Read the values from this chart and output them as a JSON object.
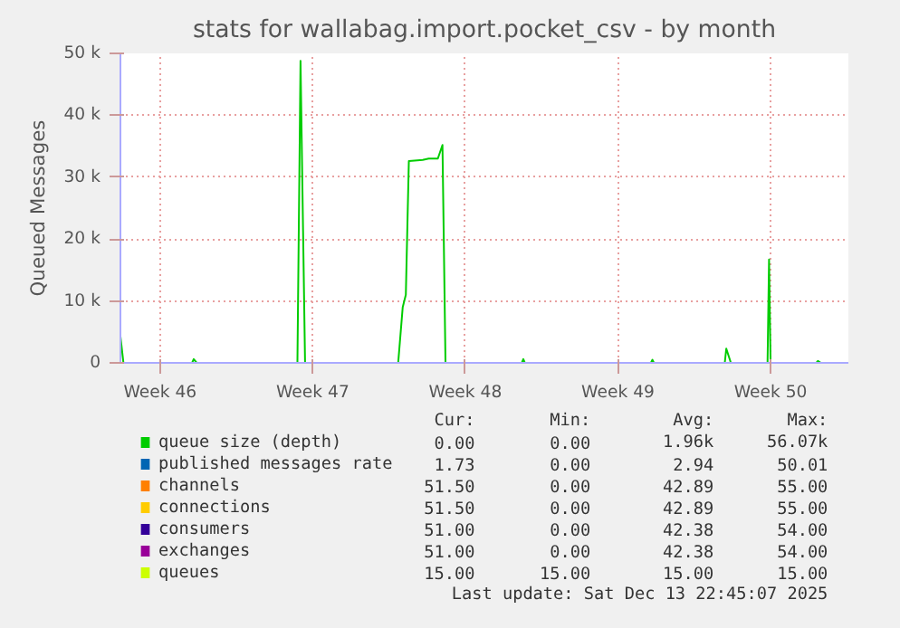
{
  "chart_data": {
    "type": "line",
    "title": "stats for wallabag.import.pocket_csv - by month",
    "ylabel": "Queued Messages",
    "xlim": [
      "2025-11-11T16:20",
      "2025-12-15T01:40"
    ],
    "ylim": [
      0,
      50000
    ],
    "xticks": [
      {
        "value": "2025-11-13T12:00",
        "label": "Week 46"
      },
      {
        "value": "2025-11-20T12:00",
        "label": "Week 47"
      },
      {
        "value": "2025-11-27T12:00",
        "label": "Week 48"
      },
      {
        "value": "2025-12-04T12:00",
        "label": "Week 49"
      },
      {
        "value": "2025-12-11T12:00",
        "label": "Week 50"
      }
    ],
    "yticks": [
      0,
      {
        "value": 10000,
        "label": "10 k"
      },
      {
        "value": 20000,
        "label": "20 k"
      },
      {
        "value": 30000,
        "label": "30 k"
      },
      {
        "value": 40000,
        "label": "40 k"
      },
      {
        "value": 50000,
        "label": "50 k"
      }
    ],
    "grid": true,
    "legend": "bottom",
    "series": [
      {
        "name": "queue size (depth)",
        "color": "#00cc00",
        "x": [
          "2025-11-11T16:20",
          "2025-11-11T19:40",
          "2025-11-14T23:15",
          "2025-11-15T01:00",
          "2025-11-15T04:20",
          "2025-11-19T19:10",
          "2025-11-19T22:35",
          "2025-11-20T03:35",
          "2025-11-24T10:05",
          "2025-11-24T15:05",
          "2025-11-24T18:30",
          "2025-11-24T21:50",
          "2025-11-25T13:00",
          "2025-11-25T19:40",
          "2025-11-26T05:45",
          "2025-11-26T10:50",
          "2025-11-26T14:10",
          "2025-11-30T02:10",
          "2025-11-30T03:50",
          "2025-11-30T05:30",
          "2025-12-06T00:15",
          "2025-12-06T02:00",
          "2025-12-06T03:40",
          "2025-12-09T09:35",
          "2025-12-09T11:15",
          "2025-12-09T16:20",
          "2025-12-11T08:40",
          "2025-12-11T10:20",
          "2025-12-11T12:00",
          "2025-12-13T14:25",
          "2025-12-13T16:05",
          "2025-12-13T19:25",
          "2025-12-15T01:40"
        ],
        "values": [
          4300,
          0,
          0,
          600,
          0,
          0,
          48800,
          0,
          0,
          9000,
          11000,
          32600,
          32800,
          33000,
          33000,
          35200,
          0,
          0,
          600,
          0,
          0,
          500,
          0,
          0,
          2300,
          0,
          0,
          16700,
          0,
          0,
          300,
          0,
          0
        ]
      },
      {
        "name": "published messages rate",
        "color": "#0066b3",
        "values": [
          null,
          null
        ]
      },
      {
        "name": "channels",
        "color": "#ff8000",
        "values": [
          null,
          null
        ]
      },
      {
        "name": "connections",
        "color": "#ffcc00",
        "values": [
          null,
          null
        ]
      },
      {
        "name": "consumers",
        "color": "#330099",
        "values": [
          null,
          null
        ]
      },
      {
        "name": "exchanges",
        "color": "#990099",
        "values": [
          null,
          null
        ]
      },
      {
        "name": "queues",
        "color": "#ccff00",
        "values": [
          null,
          null
        ]
      }
    ],
    "annotations": [
      "Cur:",
      "Min:",
      "Avg:",
      "Max:",
      "0.00",
      "0.00",
      "1.96k",
      "56.07k",
      "1.73",
      "0.00",
      "2.94",
      "50.01",
      "51.50",
      "0.00",
      "42.89",
      "55.00",
      "51.50",
      "0.00",
      "42.89",
      "55.00",
      "51.00",
      "0.00",
      "42.38",
      "54.00",
      "51.00",
      "0.00",
      "42.38",
      "54.00",
      "15.00",
      "15.00",
      "15.00",
      "15.00",
      "Last update: Sat Dec 13 22:45:07 2025"
    ]
  }
}
